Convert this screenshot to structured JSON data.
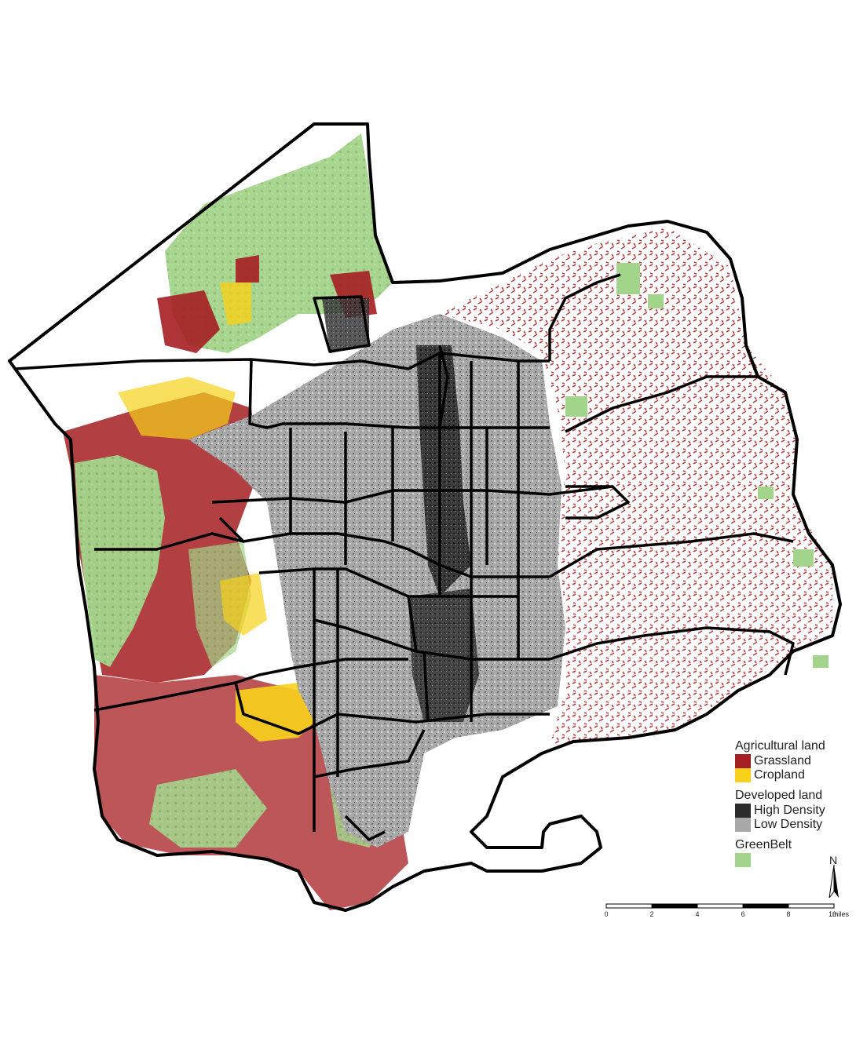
{
  "legend": {
    "agricultural_header": "Agricultural land",
    "grassland_label": "Grassland",
    "cropland_label": "Cropland",
    "developed_header": "Developed land",
    "high_density_label": "High Density",
    "low_density_label": "Low Density",
    "greenbelt_header": "GreenBelt"
  },
  "colors": {
    "grassland": "#a51e22",
    "cropland": "#f7d11a",
    "high_density": "#2b2b2b",
    "low_density": "#a8a8a8",
    "greenbelt": "#a3d48b",
    "boundary": "#000000"
  },
  "north_arrow": {
    "label": "N"
  },
  "scale_bar": {
    "ticks": [
      "0",
      "2",
      "4",
      "6",
      "8",
      "10"
    ],
    "units": "miles"
  }
}
